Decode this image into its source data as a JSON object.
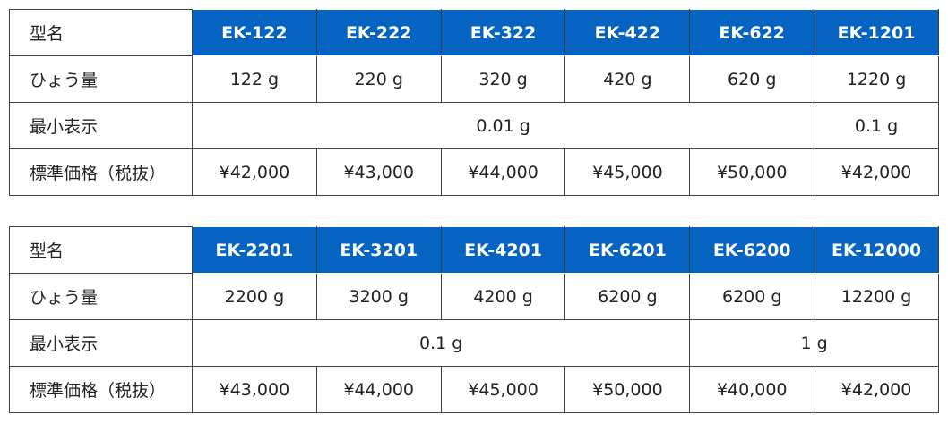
{
  "tables": [
    {
      "header": [
        "型名",
        "EK-122",
        "EK-222",
        "EK-322",
        "EK-422",
        "EK-622",
        "EK-1201"
      ],
      "rows": [
        [
          "ひょう量",
          "122 g",
          "220 g",
          "320 g",
          "420 g",
          "620 g",
          "1220 g"
        ],
        [
          "最小表示",
          "0.01 g",
          "0.1 g"
        ],
        [
          "標準価格（税抜）",
          "¥42,000",
          "¥43,000",
          "¥44,000",
          "¥45,000",
          "¥50,000",
          "¥42,000"
        ]
      ]
    },
    {
      "header": [
        "型名",
        "EK-2201",
        "EK-3201",
        "EK-4201",
        "EK-6201",
        "EK-6200",
        "EK-12000"
      ],
      "rows": [
        [
          "ひょう量",
          "2200 g",
          "3200 g",
          "4200 g",
          "6200 g",
          "6200 g",
          "12200 g"
        ],
        [
          "最小表示",
          "0.1 g",
          "1 g"
        ],
        [
          "標準価格（税抜）",
          "¥43,000",
          "¥44,000",
          "¥45,000",
          "¥50,000",
          "¥40,000",
          "¥42,000"
        ]
      ]
    }
  ]
}
